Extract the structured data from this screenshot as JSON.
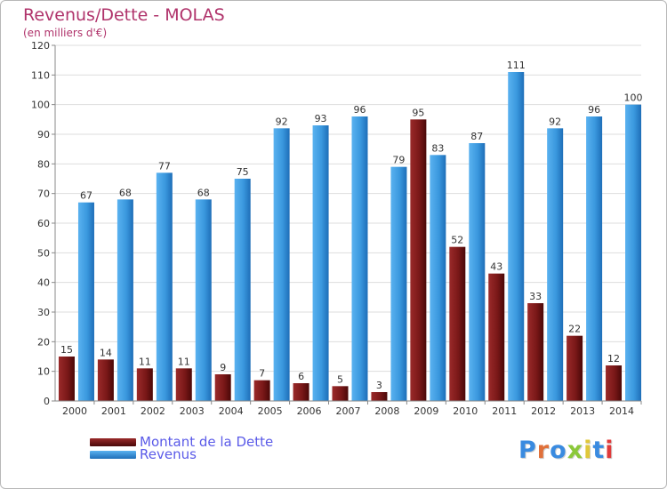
{
  "title": "Revenus/Dette - MOLAS",
  "subtitle": "(en milliers d'€)",
  "legend": [
    {
      "label": "Montant de la Dette",
      "color": "#7a1a1a"
    },
    {
      "label": "Revenus",
      "color": "#3a9ae0"
    }
  ],
  "logo": {
    "text": "Proxiti",
    "colors": [
      "#3a8be0",
      "#e0703a",
      "#3a8be0",
      "#8bc83a",
      "#e0c83a",
      "#3a8be0",
      "#e03a3a"
    ]
  },
  "chart_data": {
    "type": "bar",
    "title": "Revenus/Dette - MOLAS",
    "subtitle": "(en milliers d'€)",
    "categories": [
      "2000",
      "2001",
      "2002",
      "2003",
      "2004",
      "2005",
      "2006",
      "2007",
      "2008",
      "2009",
      "2010",
      "2011",
      "2012",
      "2013",
      "2014"
    ],
    "series": [
      {
        "name": "Montant de la Dette",
        "color": "#7a1a1a",
        "values": [
          15,
          14,
          11,
          11,
          9,
          7,
          6,
          5,
          3,
          95,
          52,
          43,
          33,
          22,
          12
        ]
      },
      {
        "name": "Revenus",
        "color": "#3a9ae0",
        "values": [
          67,
          68,
          77,
          68,
          75,
          92,
          93,
          96,
          79,
          83,
          87,
          111,
          92,
          96,
          100
        ]
      }
    ],
    "ylim": [
      0,
      120
    ],
    "yticks": [
      0,
      10,
      20,
      30,
      40,
      50,
      60,
      70,
      80,
      90,
      100,
      110,
      120
    ],
    "grid": true,
    "legend_position": "bottom-left"
  }
}
